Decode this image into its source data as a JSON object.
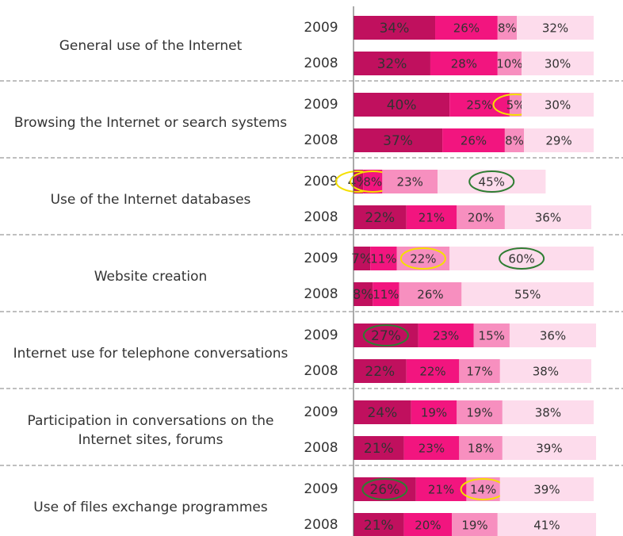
{
  "chart_data": {
    "type": "bar",
    "orientation": "horizontal",
    "stacked": true,
    "xlim": [
      0,
      100
    ],
    "colors": [
      "#c0105e",
      "#f2157f",
      "#f78fbf",
      "#fddcec"
    ],
    "groups": [
      {
        "label": "General use of the Internet",
        "rows": [
          {
            "label": "2009",
            "values": [
              34,
              26,
              8,
              32
            ],
            "value_labels": [
              "34%",
              "26%",
              "8%",
              "32%"
            ]
          },
          {
            "label": "2008",
            "values": [
              32,
              28,
              10,
              30
            ],
            "value_labels": [
              "32%",
              "28%",
              "10%",
              "30%"
            ]
          }
        ]
      },
      {
        "label": "Browsing the Internet or search systems",
        "rows": [
          {
            "label": "2009",
            "values": [
              40,
              25,
              5,
              30
            ],
            "value_labels": [
              "40%",
              "25%",
              "5%",
              "30%"
            ],
            "highlight": [
              null,
              null,
              "#f5e000",
              null
            ]
          },
          {
            "label": "2008",
            "values": [
              37,
              26,
              8,
              29
            ],
            "value_labels": [
              "37%",
              "26%",
              "8%",
              "29%"
            ]
          }
        ]
      },
      {
        "label": "Use of the Internet databases",
        "rows": [
          {
            "label": "2009",
            "values": [
              4,
              8,
              23,
              45
            ],
            "value_labels": [
              "4%",
              "8%",
              "23%",
              "45%"
            ],
            "highlight": [
              "#f5e000",
              "#f5e000",
              null,
              "#2e7d32"
            ]
          },
          {
            "label": "2008",
            "values": [
              22,
              21,
              20,
              36
            ],
            "value_labels": [
              "22%",
              "21%",
              "20%",
              "36%"
            ]
          }
        ]
      },
      {
        "label": "Website creation",
        "rows": [
          {
            "label": "2009",
            "values": [
              7,
              11,
              22,
              60
            ],
            "value_labels": [
              "7%",
              "11%",
              "22%",
              "60%"
            ],
            "highlight": [
              null,
              null,
              "#f5e000",
              "#2e7d32"
            ]
          },
          {
            "label": "2008",
            "values": [
              8,
              11,
              26,
              55
            ],
            "value_labels": [
              "8%",
              "11%",
              "26%",
              "55%"
            ]
          }
        ]
      },
      {
        "label": "Internet use for telephone conversations",
        "rows": [
          {
            "label": "2009",
            "values": [
              27,
              23,
              15,
              36
            ],
            "value_labels": [
              "27%",
              "23%",
              "15%",
              "36%"
            ],
            "highlight": [
              "#2e7d32",
              null,
              null,
              null
            ]
          },
          {
            "label": "2008",
            "values": [
              22,
              22,
              17,
              38
            ],
            "value_labels": [
              "22%",
              "22%",
              "17%",
              "38%"
            ]
          }
        ]
      },
      {
        "label": "Participation in conversations on the Internet sites, forums",
        "rows": [
          {
            "label": "2009",
            "values": [
              24,
              19,
              19,
              38
            ],
            "value_labels": [
              "24%",
              "19%",
              "19%",
              "38%"
            ]
          },
          {
            "label": "2008",
            "values": [
              21,
              23,
              18,
              39
            ],
            "value_labels": [
              "21%",
              "23%",
              "18%",
              "39%"
            ]
          }
        ]
      },
      {
        "label": "Use of files exchange programmes",
        "rows": [
          {
            "label": "2009",
            "values": [
              26,
              21,
              14,
              39
            ],
            "value_labels": [
              "26%",
              "21%",
              "14%",
              "39%"
            ],
            "highlight": [
              "#2e7d32",
              null,
              "#f5e000",
              null
            ]
          },
          {
            "label": "2008",
            "values": [
              21,
              20,
              19,
              41
            ],
            "value_labels": [
              "21%",
              "20%",
              "19%",
              "41%"
            ]
          }
        ]
      }
    ]
  }
}
